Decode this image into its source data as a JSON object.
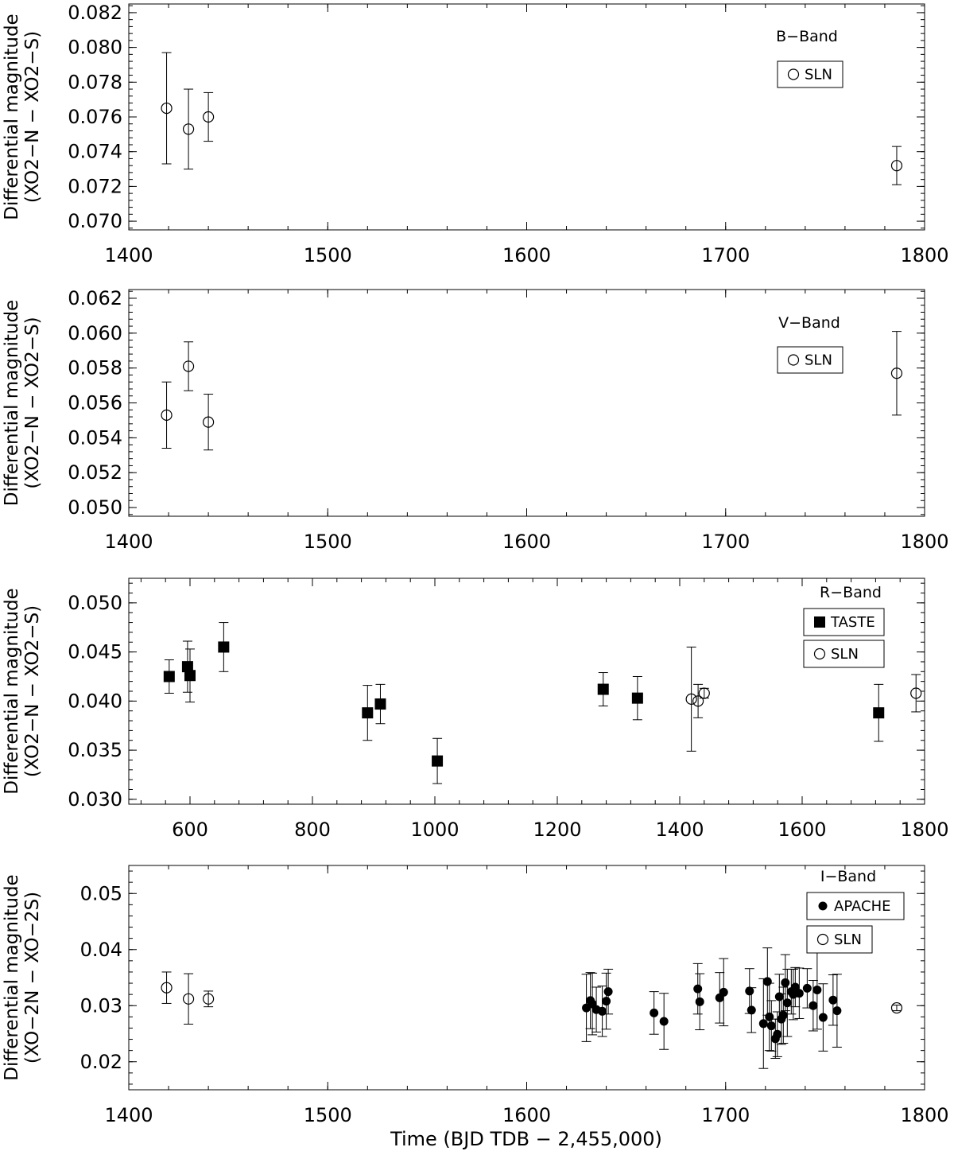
{
  "figure": {
    "x_axis_label": "Time (BJD TDB − 2,455,000)"
  },
  "chart_data": [
    {
      "type": "scatter",
      "band_label": "B−Band",
      "ylabel_line1": "Differential magnitude",
      "ylabel_line2": "(XO2−N − XO2−S)",
      "xlim": [
        1400,
        1800
      ],
      "ylim": [
        0.0695,
        0.0825
      ],
      "x_ticks": [
        1400,
        1500,
        1600,
        1700,
        1800
      ],
      "x_tick_labels": [
        "1400",
        "1500",
        "1600",
        "1700",
        "1800"
      ],
      "y_ticks": [
        0.07,
        0.072,
        0.074,
        0.076,
        0.078,
        0.08,
        0.082
      ],
      "y_tick_labels": [
        "0.070",
        "0.072",
        "0.074",
        "0.076",
        "0.078",
        "0.080",
        "0.082"
      ],
      "legend": [
        {
          "name": "SLN",
          "marker": "open-circle"
        }
      ],
      "legend_position": "top-right",
      "series": [
        {
          "name": "SLN",
          "marker": "open-circle",
          "points": [
            {
              "x": 1419,
              "y": 0.0765,
              "err": 0.0032
            },
            {
              "x": 1430,
              "y": 0.0753,
              "err": 0.0023
            },
            {
              "x": 1440,
              "y": 0.076,
              "err": 0.0014
            },
            {
              "x": 1786,
              "y": 0.0732,
              "err": 0.0011
            }
          ]
        }
      ]
    },
    {
      "type": "scatter",
      "band_label": "V−Band",
      "ylabel_line1": "Differential magnitude",
      "ylabel_line2": "(XO2−N − XO2−S)",
      "xlim": [
        1400,
        1800
      ],
      "ylim": [
        0.0495,
        0.0625
      ],
      "x_ticks": [
        1400,
        1500,
        1600,
        1700,
        1800
      ],
      "x_tick_labels": [
        "1400",
        "1500",
        "1600",
        "1700",
        "1800"
      ],
      "y_ticks": [
        0.05,
        0.052,
        0.054,
        0.056,
        0.058,
        0.06,
        0.062
      ],
      "y_tick_labels": [
        "0.050",
        "0.052",
        "0.054",
        "0.056",
        "0.058",
        "0.060",
        "0.062"
      ],
      "legend": [
        {
          "name": "SLN",
          "marker": "open-circle"
        }
      ],
      "legend_position": "top-right",
      "series": [
        {
          "name": "SLN",
          "marker": "open-circle",
          "points": [
            {
              "x": 1419,
              "y": 0.0553,
              "err": 0.0019
            },
            {
              "x": 1430,
              "y": 0.0581,
              "err": 0.0014
            },
            {
              "x": 1440,
              "y": 0.0549,
              "err": 0.0016
            },
            {
              "x": 1786,
              "y": 0.0577,
              "err": 0.0024
            }
          ]
        }
      ]
    },
    {
      "type": "scatter",
      "band_label": "R−Band",
      "ylabel_line1": "Differential magnitude",
      "ylabel_line2": "(XO2−N − XO2−S)",
      "xlim": [
        500,
        1800
      ],
      "ylim": [
        0.0295,
        0.0525
      ],
      "x_ticks": [
        600,
        800,
        1000,
        1200,
        1400,
        1600,
        1800
      ],
      "x_tick_labels": [
        "600",
        "800",
        "1000",
        "1200",
        "1400",
        "1600",
        "1800"
      ],
      "y_ticks": [
        0.03,
        0.035,
        0.04,
        0.045,
        0.05
      ],
      "y_tick_labels": [
        "0.030",
        "0.035",
        "0.040",
        "0.045",
        "0.050"
      ],
      "legend": [
        {
          "name": "TASTE",
          "marker": "filled-square"
        },
        {
          "name": "SLN",
          "marker": "open-circle"
        }
      ],
      "legend_position": "top-right",
      "series": [
        {
          "name": "TASTE",
          "marker": "filled-square",
          "points": [
            {
              "x": 566,
              "y": 0.0425,
              "err": 0.0017
            },
            {
              "x": 596,
              "y": 0.0435,
              "err": 0.0026
            },
            {
              "x": 600,
              "y": 0.0426,
              "err": 0.0027
            },
            {
              "x": 655,
              "y": 0.0455,
              "err": 0.0025
            },
            {
              "x": 890,
              "y": 0.0388,
              "err": 0.0028
            },
            {
              "x": 911,
              "y": 0.0397,
              "err": 0.002
            },
            {
              "x": 1004,
              "y": 0.0339,
              "err": 0.0023
            },
            {
              "x": 1275,
              "y": 0.0412,
              "err": 0.0017
            },
            {
              "x": 1331,
              "y": 0.0403,
              "err": 0.0022
            },
            {
              "x": 1725,
              "y": 0.0388,
              "err": 0.0029
            }
          ]
        },
        {
          "name": "SLN",
          "marker": "open-circle",
          "points": [
            {
              "x": 1419,
              "y": 0.0402,
              "err": 0.0053
            },
            {
              "x": 1430,
              "y": 0.04,
              "err": 0.0017
            },
            {
              "x": 1440,
              "y": 0.0408,
              "err": 0.0005
            },
            {
              "x": 1786,
              "y": 0.0408,
              "err": 0.0019
            }
          ]
        }
      ]
    },
    {
      "type": "scatter",
      "band_label": "I−Band",
      "ylabel_line1": "Differential magnitude",
      "ylabel_line2": "(XO−2N − XO−2S)",
      "xlim": [
        1400,
        1800
      ],
      "ylim": [
        0.015,
        0.055
      ],
      "x_ticks": [
        1400,
        1500,
        1600,
        1700,
        1800
      ],
      "x_tick_labels": [
        "1400",
        "1500",
        "1600",
        "1700",
        "1800"
      ],
      "y_ticks": [
        0.02,
        0.03,
        0.04,
        0.05
      ],
      "y_tick_labels": [
        "0.02",
        "0.03",
        "0.04",
        "0.05"
      ],
      "legend": [
        {
          "name": "APACHE",
          "marker": "filled-circle"
        },
        {
          "name": "SLN",
          "marker": "open-circle"
        }
      ],
      "legend_position": "top-right",
      "series": [
        {
          "name": "APACHE",
          "marker": "filled-circle",
          "points": [
            {
              "x": 1630,
              "y": 0.0296,
              "err": 0.006
            },
            {
              "x": 1632,
              "y": 0.0309,
              "err": 0.005
            },
            {
              "x": 1633,
              "y": 0.0303,
              "err": 0.0055
            },
            {
              "x": 1635,
              "y": 0.0293,
              "err": 0.004
            },
            {
              "x": 1638,
              "y": 0.029,
              "err": 0.0045
            },
            {
              "x": 1640,
              "y": 0.0308,
              "err": 0.005
            },
            {
              "x": 1641,
              "y": 0.0325,
              "err": 0.004
            },
            {
              "x": 1664,
              "y": 0.0287,
              "err": 0.0038
            },
            {
              "x": 1669,
              "y": 0.0272,
              "err": 0.005
            },
            {
              "x": 1686,
              "y": 0.033,
              "err": 0.0045
            },
            {
              "x": 1687,
              "y": 0.0307,
              "err": 0.005
            },
            {
              "x": 1697,
              "y": 0.0314,
              "err": 0.0045
            },
            {
              "x": 1699,
              "y": 0.0324,
              "err": 0.006
            },
            {
              "x": 1712,
              "y": 0.0326,
              "err": 0.004
            },
            {
              "x": 1713,
              "y": 0.0292,
              "err": 0.004
            },
            {
              "x": 1719,
              "y": 0.0268,
              "err": 0.008
            },
            {
              "x": 1721,
              "y": 0.0343,
              "err": 0.006
            },
            {
              "x": 1722,
              "y": 0.028,
              "err": 0.006
            },
            {
              "x": 1723,
              "y": 0.0264,
              "err": 0.0045
            },
            {
              "x": 1725,
              "y": 0.0241,
              "err": 0.0035
            },
            {
              "x": 1726,
              "y": 0.0249,
              "err": 0.004
            },
            {
              "x": 1727,
              "y": 0.0316,
              "err": 0.004
            },
            {
              "x": 1728,
              "y": 0.0276,
              "err": 0.0045
            },
            {
              "x": 1729,
              "y": 0.0283,
              "err": 0.005
            },
            {
              "x": 1730,
              "y": 0.0341,
              "err": 0.005
            },
            {
              "x": 1731,
              "y": 0.0305,
              "err": 0.006
            },
            {
              "x": 1733,
              "y": 0.0325,
              "err": 0.004
            },
            {
              "x": 1734,
              "y": 0.032,
              "err": 0.0045
            },
            {
              "x": 1735,
              "y": 0.0333,
              "err": 0.0035
            },
            {
              "x": 1737,
              "y": 0.0322,
              "err": 0.0045
            },
            {
              "x": 1741,
              "y": 0.0331,
              "err": 0.0035
            },
            {
              "x": 1744,
              "y": 0.03,
              "err": 0.0045
            },
            {
              "x": 1746,
              "y": 0.0328,
              "err": 0.007
            },
            {
              "x": 1749,
              "y": 0.0279,
              "err": 0.006
            },
            {
              "x": 1754,
              "y": 0.031,
              "err": 0.0045
            },
            {
              "x": 1756,
              "y": 0.0291,
              "err": 0.0065
            }
          ]
        },
        {
          "name": "SLN",
          "marker": "open-circle",
          "points": [
            {
              "x": 1419,
              "y": 0.0332,
              "err": 0.0028
            },
            {
              "x": 1430,
              "y": 0.0312,
              "err": 0.0045
            },
            {
              "x": 1440,
              "y": 0.0312,
              "err": 0.0014
            },
            {
              "x": 1786,
              "y": 0.0296,
              "err": 0.0005
            }
          ]
        }
      ]
    }
  ]
}
